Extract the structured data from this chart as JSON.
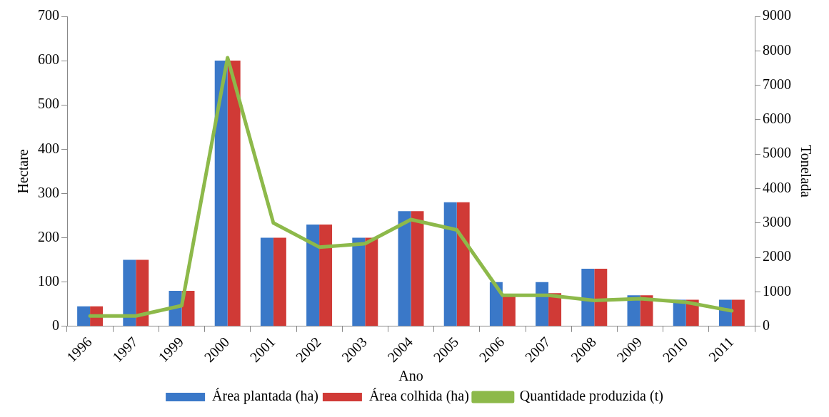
{
  "chart_data": {
    "type": "bar",
    "xlabel": "Ano",
    "ylabel": "Hectare",
    "y2label": "Tonelada",
    "categories": [
      "1996",
      "1997",
      "1999",
      "2000",
      "2001",
      "2002",
      "2003",
      "2004",
      "2005",
      "2006",
      "2007",
      "2008",
      "2009",
      "2010",
      "2011"
    ],
    "series": [
      {
        "name": "Área plantada (ha)",
        "color": "#3a78c8",
        "values": [
          45,
          150,
          80,
          600,
          200,
          230,
          200,
          260,
          280,
          100,
          100,
          130,
          70,
          60,
          60
        ]
      },
      {
        "name": "Área colhida (ha)",
        "color": "#d03a36",
        "values": [
          45,
          150,
          80,
          600,
          200,
          230,
          200,
          260,
          280,
          70,
          75,
          130,
          70,
          60,
          60
        ]
      },
      {
        "name": "Quantidade produzida (t)",
        "color": "#8db94a",
        "type": "line",
        "axis": "y2",
        "values": [
          300,
          300,
          600,
          7800,
          3000,
          2300,
          2400,
          3100,
          2800,
          900,
          900,
          750,
          800,
          700,
          450
        ]
      }
    ],
    "ylim": [
      0,
      700
    ],
    "yticks": [
      0,
      100,
      200,
      300,
      400,
      500,
      600,
      700
    ],
    "y2lim": [
      0,
      9000
    ],
    "y2ticks": [
      0,
      1000,
      2000,
      3000,
      4000,
      5000,
      6000,
      7000,
      8000,
      9000
    ],
    "grid": false,
    "legend": "bottom",
    "marker": "none"
  }
}
